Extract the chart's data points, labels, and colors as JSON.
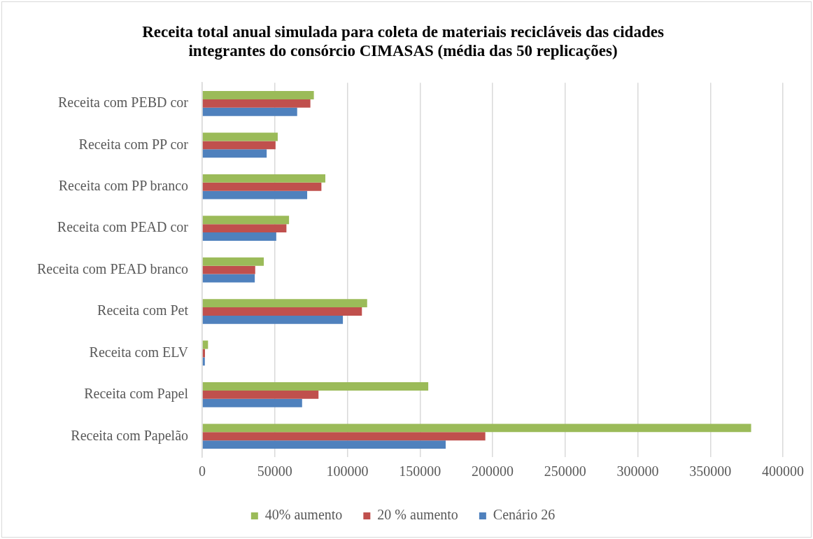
{
  "chart_data": {
    "type": "bar",
    "orientation": "horizontal",
    "title": "Receita total anual simulada para coleta de materiais recicláveis das cidades integrantes do consórcio CIMASAS (média das 50 replicações)",
    "categories": [
      "Receita com PEBD cor",
      "Receita com PP cor",
      "Receita com PP branco",
      "Receita com PEAD cor",
      "Receita com PEAD branco",
      "Receita com Pet",
      "Receita com ELV",
      "Receita com Papel",
      "Receita com Papelão"
    ],
    "series": [
      {
        "name": "40% aumento",
        "color": "#9bbb59",
        "values": [
          76900,
          52000,
          84800,
          59800,
          42400,
          113600,
          4000,
          155700,
          378100
        ]
      },
      {
        "name": "20 % aumento",
        "color": "#c0504d",
        "values": [
          74500,
          50500,
          82100,
          58000,
          36500,
          110000,
          1900,
          80100,
          195000
        ]
      },
      {
        "name": "Cenário 26",
        "color": "#4f81bd",
        "values": [
          65400,
          44400,
          72300,
          51000,
          36200,
          96900,
          1800,
          68800,
          167700
        ]
      }
    ],
    "xlim": [
      0,
      400000
    ],
    "xticks": [
      0,
      50000,
      100000,
      150000,
      200000,
      250000,
      300000,
      350000,
      400000
    ],
    "grid": "x",
    "legend": "bottom"
  }
}
